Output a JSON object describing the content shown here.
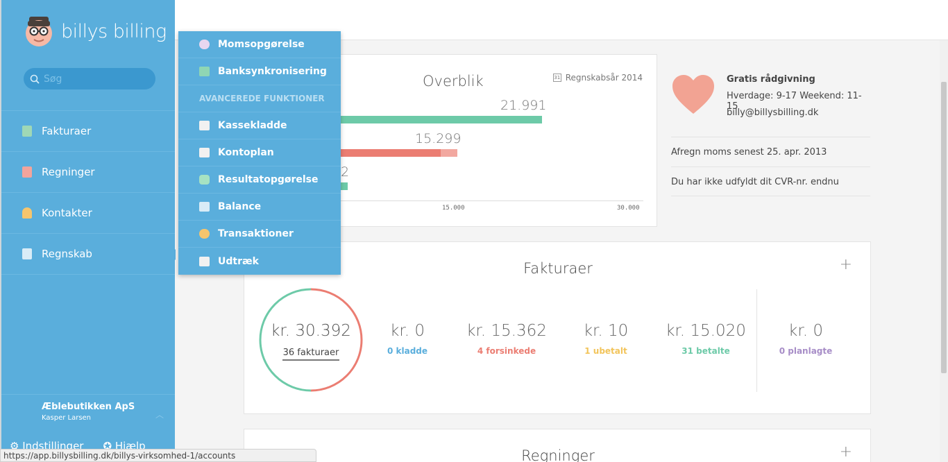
{
  "brand": {
    "name": "billys billing"
  },
  "search": {
    "placeholder": "Søg"
  },
  "nav": {
    "items": [
      {
        "label": "Fakturaer",
        "icon": "invoice-icon"
      },
      {
        "label": "Regninger",
        "icon": "bill-icon"
      },
      {
        "label": "Kontakter",
        "icon": "contact-icon"
      },
      {
        "label": "Regnskab",
        "icon": "accounting-icon"
      }
    ]
  },
  "org": {
    "name": "Æblebutikken ApS",
    "user": "Kasper Larsen"
  },
  "footer_links": {
    "settings": "Indstillinger",
    "help": "Hjælp"
  },
  "dropdown": {
    "items_top": [
      "Momsopgørelse",
      "Banksynkronisering"
    ],
    "section_header": "AVANCEREDE FUNKTIONER",
    "items_adv": [
      "Kassekladde",
      "Kontoplan",
      "Resultatopgørelse",
      "Balance",
      "Transaktioner",
      "Udtræk"
    ]
  },
  "overview": {
    "title": "Overblik",
    "fiscal_year": "Regnskabsår 2014",
    "calendar_day": "31",
    "bars": [
      {
        "label": "21.991",
        "value": 21991,
        "color": "#6dcaa8"
      },
      {
        "label": "15.299",
        "value": 15299,
        "color": "#eb7d72"
      },
      {
        "label": "2",
        "value": 2,
        "color": "#6dcaa8"
      }
    ],
    "ticks": [
      "15.000",
      "30.000"
    ]
  },
  "info": {
    "title": "Gratis rådgivning",
    "hours": "Hverdage: 9-17 Weekend: 11-15",
    "email": "billy@billysbilling.dk",
    "notice1": "Afregn moms senest 25. apr. 2013",
    "notice2": "Du har ikke udfyldt dit CVR-nr. endnu"
  },
  "fakturaer": {
    "title": "Fakturaer",
    "total": {
      "amount": "kr. 30.392",
      "label": "36 fakturaer"
    },
    "stats": [
      {
        "amount": "kr. 0",
        "label": "0 kladde",
        "color": "#5aaedc"
      },
      {
        "amount": "kr. 15.362",
        "label": "4 forsinkede",
        "color": "#eb7d72"
      },
      {
        "amount": "kr. 10",
        "label": "1 ubetalt",
        "color": "#f2c45a"
      },
      {
        "amount": "kr. 15.020",
        "label": "31 betalte",
        "color": "#6dcaa8"
      },
      {
        "amount": "kr. 0",
        "label": "0 planlagte",
        "color": "#a78dc7"
      }
    ]
  },
  "regninger": {
    "title": "Regninger"
  },
  "statusbar": {
    "url": "https://app.billysbilling.dk/billys-virksomhed-1/accounts"
  }
}
